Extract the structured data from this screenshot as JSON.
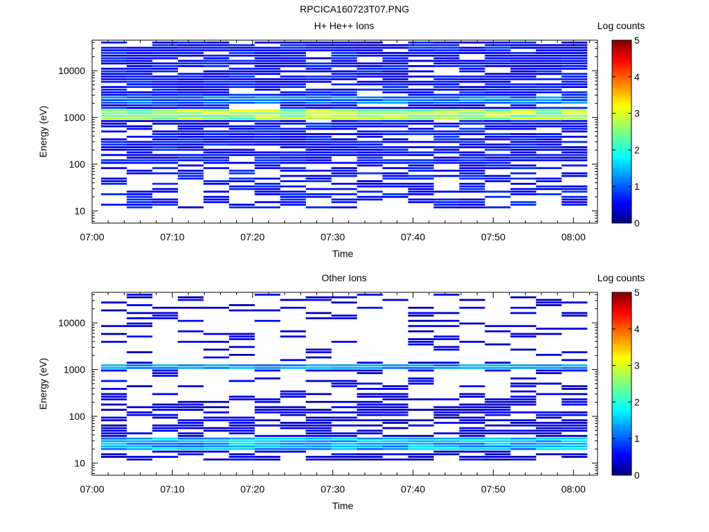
{
  "title": "RPCICA160723T07.PNG",
  "chart_data": [
    {
      "type": "heatmap",
      "title": "H+ He++ Ions",
      "xlabel": "Time",
      "ylabel": "Energy (eV)",
      "x_ticks": [
        "07:00",
        "07:10",
        "07:20",
        "07:30",
        "07:40",
        "07:50",
        "08:00"
      ],
      "y_ticks": [
        "10",
        "100",
        "1000",
        "10000"
      ],
      "y_scale": "log",
      "ylim": [
        5.5,
        45000
      ],
      "xlim_minutes": [
        0,
        63
      ],
      "colorbar": {
        "label": "Log counts",
        "ticks": [
          "0",
          "1",
          "2",
          "3",
          "4",
          "5"
        ],
        "range": [
          0,
          5
        ]
      },
      "time_bins": 19,
      "energy_channels": 64,
      "dominant_band": {
        "energy_ev": [
          850,
          1500
        ],
        "peak_log_counts": 3.1
      },
      "secondary_band": {
        "energy_ev": [
          2000,
          2800
        ],
        "peak_log_counts": 1.5
      },
      "background_log_counts": 0.4
    },
    {
      "type": "heatmap",
      "title": "Other Ions",
      "xlabel": "Time",
      "ylabel": "Energy (eV)",
      "x_ticks": [
        "07:00",
        "07:10",
        "07:20",
        "07:30",
        "07:40",
        "07:50",
        "08:00"
      ],
      "y_ticks": [
        "10",
        "100",
        "1000",
        "10000"
      ],
      "y_scale": "log",
      "ylim": [
        5.5,
        45000
      ],
      "xlim_minutes": [
        0,
        63
      ],
      "colorbar": {
        "label": "Log counts",
        "ticks": [
          "0",
          "1",
          "2",
          "3",
          "4",
          "5"
        ],
        "range": [
          0,
          5
        ]
      },
      "time_bins": 19,
      "energy_channels": 64,
      "dominant_band": {
        "energy_ev": [
          1000,
          1300
        ],
        "peak_log_counts": 1.6
      },
      "secondary_band": {
        "energy_ev": [
          18,
          35
        ],
        "peak_log_counts": 1.8
      },
      "background_log_counts": 0.2
    }
  ]
}
